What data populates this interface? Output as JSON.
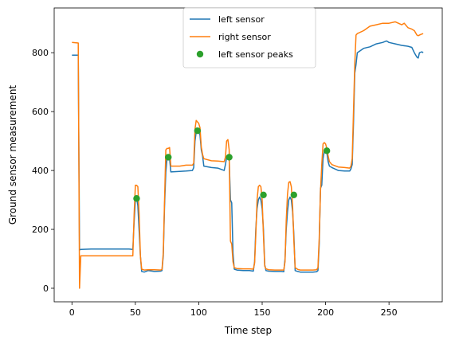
{
  "chart_data": {
    "type": "line",
    "title": "",
    "xlabel": "Time step",
    "ylabel": "Ground sensor measurement",
    "xlim": [
      -14,
      292
    ],
    "ylim": [
      -46,
      952
    ],
    "xticks": [
      0,
      50,
      100,
      150,
      200,
      250
    ],
    "yticks": [
      0,
      200,
      400,
      600,
      800
    ],
    "grid": false,
    "legend_position": "top-center",
    "series": [
      {
        "name": "left sensor",
        "kind": "line",
        "color": "#1f77b4",
        "points": [
          [
            0,
            792
          ],
          [
            5,
            792
          ],
          [
            6,
            130
          ],
          [
            7,
            132
          ],
          [
            15,
            133
          ],
          [
            25,
            133
          ],
          [
            35,
            133
          ],
          [
            45,
            133
          ],
          [
            48,
            132
          ],
          [
            49,
            225
          ],
          [
            50,
            300
          ],
          [
            51,
            310
          ],
          [
            52,
            280
          ],
          [
            53,
            195
          ],
          [
            54,
            110
          ],
          [
            55,
            57
          ],
          [
            57,
            55
          ],
          [
            60,
            60
          ],
          [
            65,
            57
          ],
          [
            70,
            58
          ],
          [
            71,
            60
          ],
          [
            72,
            110
          ],
          [
            73,
            280
          ],
          [
            74,
            395
          ],
          [
            75,
            440
          ],
          [
            76,
            445
          ],
          [
            77,
            440
          ],
          [
            78,
            395
          ],
          [
            85,
            397
          ],
          [
            90,
            398
          ],
          [
            95,
            400
          ],
          [
            96,
            410
          ],
          [
            97,
            500
          ],
          [
            98,
            530
          ],
          [
            99,
            535
          ],
          [
            100,
            530
          ],
          [
            101,
            520
          ],
          [
            102,
            470
          ],
          [
            103,
            450
          ],
          [
            104,
            415
          ],
          [
            110,
            410
          ],
          [
            115,
            408
          ],
          [
            120,
            400
          ],
          [
            121,
            420
          ],
          [
            122,
            445
          ],
          [
            123,
            450
          ],
          [
            124,
            440
          ],
          [
            125,
            300
          ],
          [
            126,
            290
          ],
          [
            127,
            120
          ],
          [
            128,
            65
          ],
          [
            130,
            62
          ],
          [
            135,
            60
          ],
          [
            140,
            60
          ],
          [
            143,
            58
          ],
          [
            144,
            90
          ],
          [
            145,
            200
          ],
          [
            146,
            270
          ],
          [
            147,
            300
          ],
          [
            148,
            310
          ],
          [
            149,
            300
          ],
          [
            150,
            270
          ],
          [
            151,
            200
          ],
          [
            152,
            80
          ],
          [
            153,
            60
          ],
          [
            155,
            58
          ],
          [
            160,
            57
          ],
          [
            165,
            57
          ],
          [
            167,
            56
          ],
          [
            168,
            100
          ],
          [
            169,
            200
          ],
          [
            170,
            260
          ],
          [
            171,
            300
          ],
          [
            172,
            310
          ],
          [
            173,
            300
          ],
          [
            174,
            260
          ],
          [
            175,
            180
          ],
          [
            176,
            60
          ],
          [
            178,
            57
          ],
          [
            180,
            55
          ],
          [
            185,
            55
          ],
          [
            190,
            55
          ],
          [
            193,
            56
          ],
          [
            194,
            60
          ],
          [
            195,
            150
          ],
          [
            196,
            340
          ],
          [
            197,
            350
          ],
          [
            198,
            440
          ],
          [
            199,
            465
          ],
          [
            200,
            470
          ],
          [
            201,
            460
          ],
          [
            202,
            430
          ],
          [
            203,
            415
          ],
          [
            205,
            410
          ],
          [
            210,
            400
          ],
          [
            215,
            398
          ],
          [
            219,
            398
          ],
          [
            220,
            405
          ],
          [
            221,
            420
          ],
          [
            222,
            560
          ],
          [
            223,
            730
          ],
          [
            224,
            760
          ],
          [
            225,
            800
          ],
          [
            230,
            815
          ],
          [
            235,
            820
          ],
          [
            240,
            830
          ],
          [
            245,
            835
          ],
          [
            248,
            840
          ],
          [
            250,
            835
          ],
          [
            255,
            830
          ],
          [
            260,
            825
          ],
          [
            265,
            822
          ],
          [
            268,
            818
          ],
          [
            270,
            800
          ],
          [
            272,
            785
          ],
          [
            273,
            782
          ],
          [
            274,
            800
          ],
          [
            276,
            803
          ],
          [
            277,
            800
          ]
        ]
      },
      {
        "name": "right sensor",
        "kind": "line",
        "color": "#ff7f0e",
        "points": [
          [
            0,
            835
          ],
          [
            5,
            833
          ],
          [
            6,
            0
          ],
          [
            7,
            110
          ],
          [
            10,
            110
          ],
          [
            20,
            110
          ],
          [
            30,
            110
          ],
          [
            40,
            110
          ],
          [
            48,
            110
          ],
          [
            49,
            250
          ],
          [
            50,
            350
          ],
          [
            51,
            350
          ],
          [
            52,
            345
          ],
          [
            53,
            250
          ],
          [
            54,
            110
          ],
          [
            55,
            65
          ],
          [
            57,
            62
          ],
          [
            60,
            63
          ],
          [
            65,
            63
          ],
          [
            70,
            62
          ],
          [
            71,
            64
          ],
          [
            72,
            120
          ],
          [
            73,
            300
          ],
          [
            74,
            470
          ],
          [
            75,
            475
          ],
          [
            76,
            475
          ],
          [
            77,
            478
          ],
          [
            78,
            415
          ],
          [
            85,
            415
          ],
          [
            90,
            418
          ],
          [
            95,
            418
          ],
          [
            96,
            425
          ],
          [
            97,
            540
          ],
          [
            98,
            570
          ],
          [
            99,
            565
          ],
          [
            100,
            560
          ],
          [
            101,
            545
          ],
          [
            102,
            480
          ],
          [
            103,
            455
          ],
          [
            104,
            440
          ],
          [
            110,
            433
          ],
          [
            115,
            432
          ],
          [
            120,
            430
          ],
          [
            121,
            445
          ],
          [
            122,
            500
          ],
          [
            123,
            505
          ],
          [
            124,
            470
          ],
          [
            125,
            160
          ],
          [
            126,
            150
          ],
          [
            127,
            90
          ],
          [
            128,
            70
          ],
          [
            130,
            67
          ],
          [
            135,
            66
          ],
          [
            140,
            66
          ],
          [
            143,
            65
          ],
          [
            144,
            85
          ],
          [
            145,
            180
          ],
          [
            146,
            300
          ],
          [
            147,
            345
          ],
          [
            148,
            350
          ],
          [
            149,
            345
          ],
          [
            150,
            300
          ],
          [
            151,
            180
          ],
          [
            152,
            75
          ],
          [
            153,
            66
          ],
          [
            155,
            63
          ],
          [
            160,
            62
          ],
          [
            165,
            62
          ],
          [
            167,
            62
          ],
          [
            168,
            90
          ],
          [
            169,
            230
          ],
          [
            170,
            320
          ],
          [
            171,
            360
          ],
          [
            172,
            362
          ],
          [
            173,
            345
          ],
          [
            174,
            280
          ],
          [
            175,
            160
          ],
          [
            176,
            70
          ],
          [
            178,
            64
          ],
          [
            180,
            62
          ],
          [
            185,
            62
          ],
          [
            190,
            62
          ],
          [
            193,
            63
          ],
          [
            194,
            70
          ],
          [
            195,
            170
          ],
          [
            196,
            330
          ],
          [
            197,
            420
          ],
          [
            198,
            490
          ],
          [
            199,
            495
          ],
          [
            200,
            490
          ],
          [
            201,
            475
          ],
          [
            202,
            450
          ],
          [
            203,
            430
          ],
          [
            205,
            420
          ],
          [
            210,
            412
          ],
          [
            215,
            410
          ],
          [
            219,
            408
          ],
          [
            220,
            415
          ],
          [
            221,
            440
          ],
          [
            222,
            600
          ],
          [
            223,
            760
          ],
          [
            224,
            860
          ],
          [
            225,
            865
          ],
          [
            230,
            875
          ],
          [
            235,
            890
          ],
          [
            240,
            895
          ],
          [
            245,
            900
          ],
          [
            250,
            900
          ],
          [
            255,
            905
          ],
          [
            260,
            895
          ],
          [
            262,
            900
          ],
          [
            265,
            885
          ],
          [
            268,
            880
          ],
          [
            270,
            875
          ],
          [
            272,
            860
          ],
          [
            273,
            858
          ],
          [
            275,
            862
          ],
          [
            277,
            865
          ]
        ]
      },
      {
        "name": "left sensor peaks",
        "kind": "scatter",
        "color": "#2ca02c",
        "points": [
          [
            51,
            305
          ],
          [
            76,
            445
          ],
          [
            99,
            535
          ],
          [
            124,
            445
          ],
          [
            151,
            317
          ],
          [
            175,
            317
          ],
          [
            201,
            467
          ]
        ]
      }
    ]
  }
}
